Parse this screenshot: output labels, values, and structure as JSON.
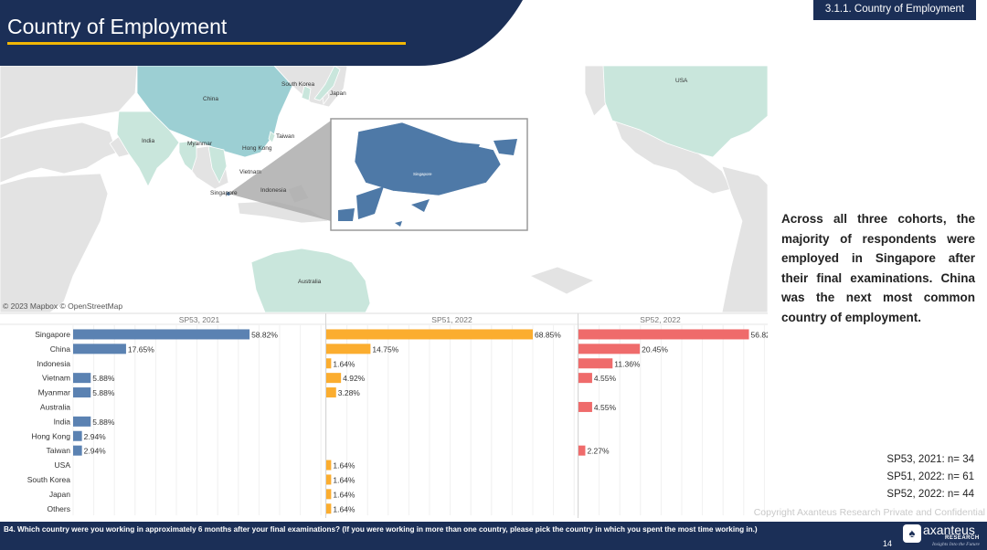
{
  "header": {
    "title": "Country of Employment",
    "section": "3.1.1. Country of Employment"
  },
  "map": {
    "attribution": "© 2023 Mapbox © OpenStreetMap",
    "labels": [
      "China",
      "South Korea",
      "Japan",
      "India",
      "Myanmar",
      "Hong Kong",
      "Taiwan",
      "Vietnam",
      "Singapore",
      "Indonesia",
      "Australia",
      "USA"
    ],
    "inset_label": "Singapore",
    "colors": {
      "land": "#e3e3e3",
      "highlight_light": "#c9e6dc",
      "highlight_mid": "#9ccfd3",
      "singapore": "#4e79a7"
    }
  },
  "chart_data": {
    "type": "bar",
    "orientation": "horizontal",
    "categories": [
      "Singapore",
      "China",
      "Indonesia",
      "Vietnam",
      "Myanmar",
      "Australia",
      "India",
      "Hong Kong",
      "Taiwan",
      "USA",
      "South Korea",
      "Japan",
      "Others"
    ],
    "series": [
      {
        "name": "SP53, 2021",
        "color": "#5b82b2",
        "values": [
          58.82,
          17.65,
          null,
          5.88,
          5.88,
          null,
          5.88,
          2.94,
          2.94,
          null,
          null,
          null,
          null
        ]
      },
      {
        "name": "SP51, 2022",
        "color": "#fbad2f",
        "values": [
          68.85,
          14.75,
          1.64,
          4.92,
          3.28,
          null,
          null,
          null,
          null,
          1.64,
          1.64,
          1.64,
          1.64
        ]
      },
      {
        "name": "SP52, 2022",
        "color": "#ef6b6b",
        "values": [
          56.82,
          20.45,
          11.36,
          4.55,
          null,
          4.55,
          null,
          null,
          2.27,
          null,
          null,
          null,
          null
        ]
      }
    ],
    "value_suffix": "%",
    "grid": true
  },
  "summary": "Across all three cohorts, the majority of respondents were employed in Singapore after their final examinations. China was the next most common country of employment.",
  "sample_sizes": [
    "SP53, 2021: n= 34",
    "SP51, 2022: n= 61",
    "SP52, 2022: n= 44"
  ],
  "copyright": "Copyright Axanteus Research Private and Confidential",
  "footer": {
    "question": "B4. Which country were you working in approximately 6 months after your final examinations? (If you were working in more than one country, please pick the country in which you spent the most time working in.)",
    "page": "14",
    "logo_name": "axanteus",
    "logo_sub": "RESEARCH",
    "logo_tag": "Insights Into the Future"
  }
}
